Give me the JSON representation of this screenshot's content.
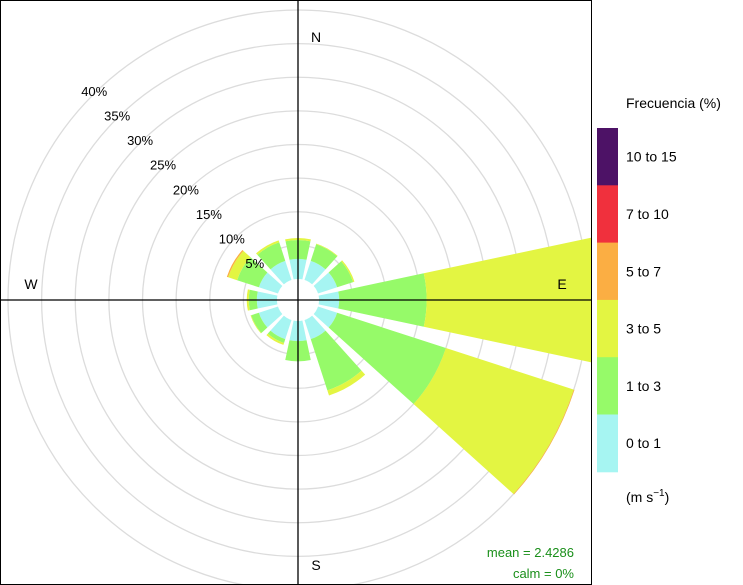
{
  "chart_data": {
    "type": "windrose",
    "compass": {
      "north": "N",
      "east": "E",
      "south": "S",
      "west": "W"
    },
    "ring_labels": [
      "5%",
      "10%",
      "15%",
      "20%",
      "25%",
      "30%",
      "35%",
      "40%"
    ],
    "ring_values": [
      5,
      10,
      15,
      20,
      25,
      30,
      35,
      40
    ],
    "radial_max": 40,
    "legend": {
      "title": "Frecuencia (%)",
      "units_prefix": "(m s",
      "units_sup": "−1",
      "units_suffix": ")",
      "bins": [
        {
          "label": "10 to 15",
          "color": "#4d1266"
        },
        {
          "label": "7 to 10",
          "color": "#f0303d"
        },
        {
          "label": "5 to 7",
          "color": "#fbae43"
        },
        {
          "label": "3 to 5",
          "color": "#e3f542"
        },
        {
          "label": "1 to 3",
          "color": "#96fa69"
        },
        {
          "label": "0 to 1",
          "color": "#a6f5f2"
        }
      ]
    },
    "directions_deg": [
      0,
      30,
      60,
      90,
      120,
      150,
      180,
      210,
      240,
      270,
      300,
      330
    ],
    "series": [
      {
        "name": "0 to 1",
        "values": [
          3,
          3,
          3,
          3,
          3,
          3,
          3,
          3,
          3,
          3,
          3,
          3
        ]
      },
      {
        "name": "1 to 3",
        "values": [
          2.8,
          2.6,
          2.5,
          13,
          17,
          8,
          3,
          0.6,
          1.2,
          1.2,
          3.4,
          2.9
        ]
      },
      {
        "name": "3 to 5",
        "values": [
          0.3,
          0.1,
          0.2,
          26,
          20,
          0.8,
          0,
          0.3,
          0.1,
          0.3,
          1.4,
          0.3
        ]
      },
      {
        "name": "5 to 7",
        "values": [
          0,
          0,
          0,
          0.2,
          0.1,
          0,
          0,
          0,
          0,
          0,
          0.2,
          0
        ]
      },
      {
        "name": "7 to 10",
        "values": [
          0,
          0,
          0,
          0.2,
          0,
          0,
          0,
          0,
          0,
          0,
          0,
          0
        ]
      },
      {
        "name": "10 to 15",
        "values": [
          0,
          0,
          0,
          0,
          0,
          0,
          0,
          0,
          0,
          0,
          0,
          0
        ]
      }
    ],
    "stats": {
      "mean": "mean = 2.4286",
      "calm": "calm = 0%"
    }
  }
}
